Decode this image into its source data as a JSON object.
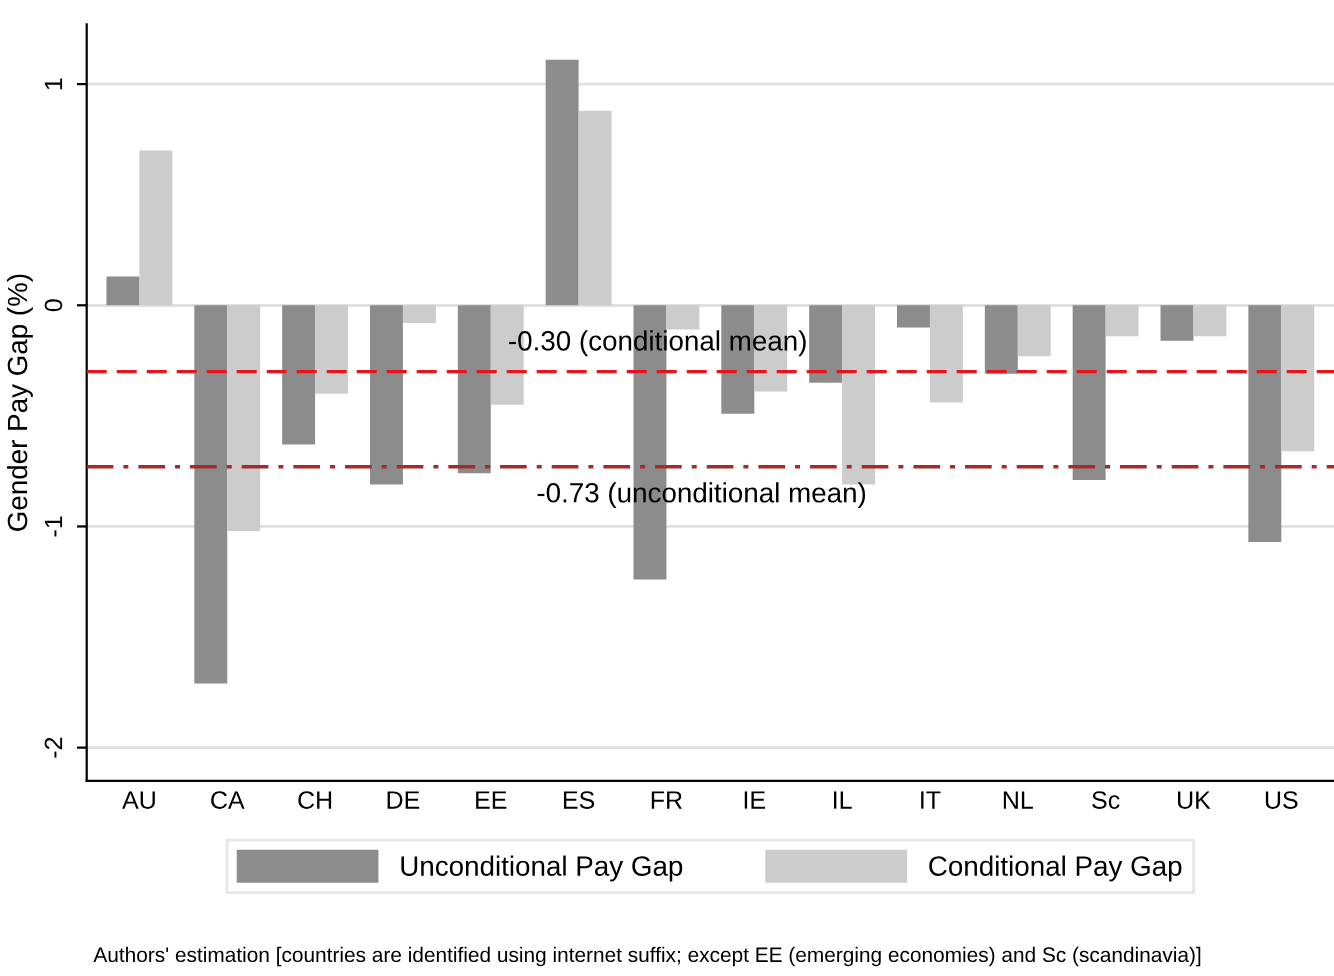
{
  "chart_data": {
    "type": "bar",
    "ylabel": "Gender Pay Gap (%)",
    "categories": [
      "AU",
      "CA",
      "CH",
      "DE",
      "EE",
      "ES",
      "FR",
      "IE",
      "IL",
      "IT",
      "NL",
      "Sc",
      "UK",
      "US"
    ],
    "series": [
      {
        "name": "Unconditional Pay Gap",
        "color": "#8c8c8c",
        "values": [
          0.13,
          -1.71,
          -0.63,
          -0.81,
          -0.76,
          1.11,
          -1.24,
          -0.49,
          -0.35,
          -0.1,
          -0.31,
          -0.79,
          -0.16,
          -1.07
        ]
      },
      {
        "name": "Conditional Pay Gap",
        "color": "#cccccc",
        "values": [
          0.7,
          -1.02,
          -0.4,
          -0.08,
          -0.45,
          0.88,
          -0.11,
          -0.39,
          -0.81,
          -0.44,
          -0.23,
          -0.14,
          -0.14,
          -0.66
        ]
      }
    ],
    "ylim": [
      -2.15,
      1.27
    ],
    "yticks": [
      -2,
      -1,
      0,
      1
    ],
    "grid": "y",
    "legend": "bottom",
    "ref_lines": [
      {
        "axis": "y",
        "value": -0.3,
        "label": "-0.30 (conditional mean)",
        "color": "#e8141c",
        "line_style": "dashed"
      },
      {
        "axis": "y",
        "value": -0.73,
        "label": "-0.73 (unconditional mean)",
        "color": "#a52a2a",
        "line_style": "dashdot"
      }
    ],
    "annotations": [
      "Authors' estimation [countries are identified using internet suffix; except EE (emerging economies) and Sc (scandinavia)]"
    ]
  }
}
